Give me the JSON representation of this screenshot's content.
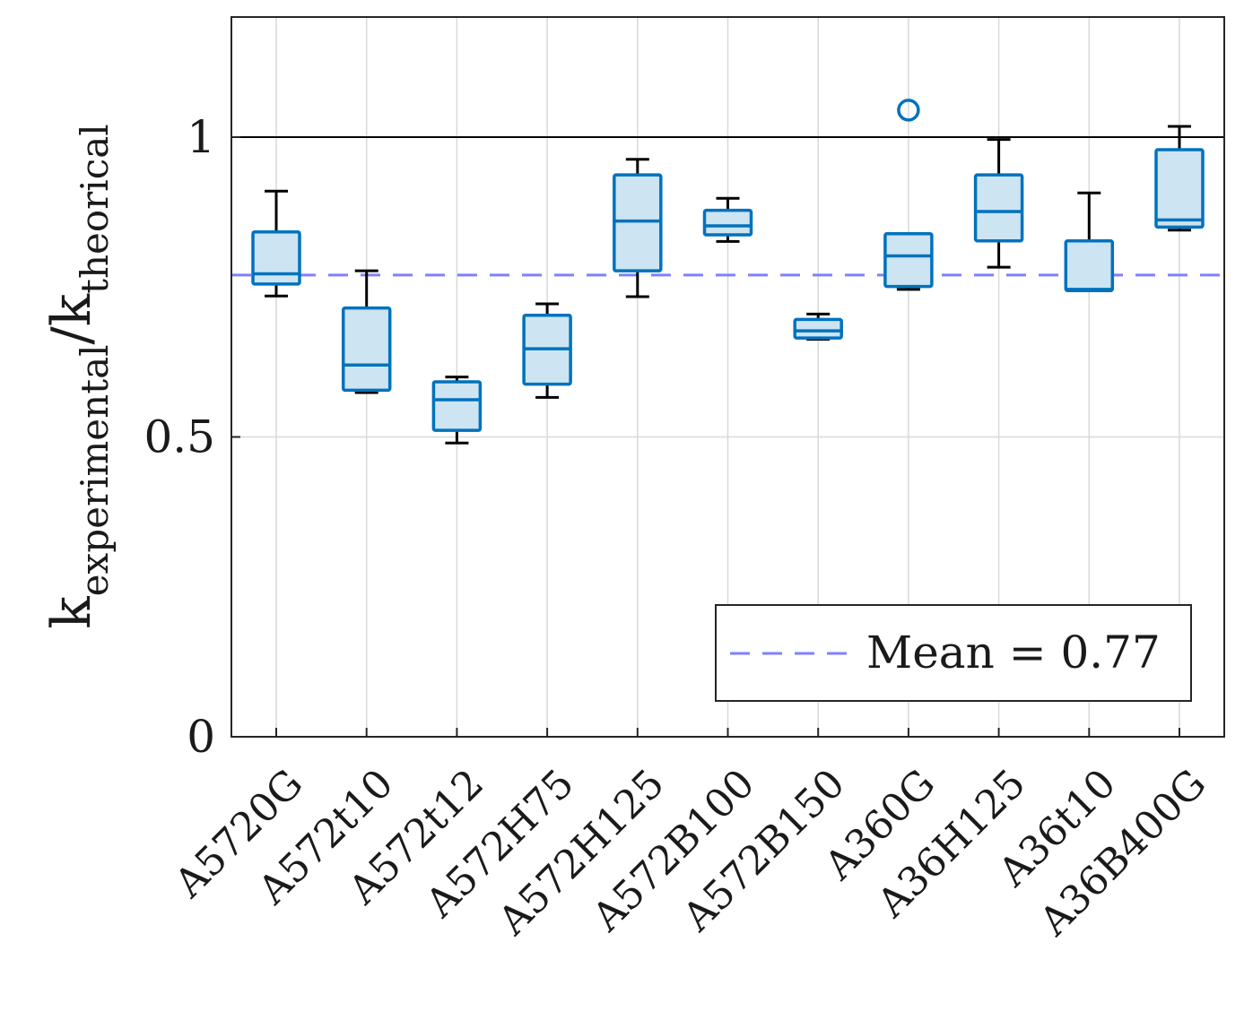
{
  "chart_data": {
    "type": "box",
    "title": "",
    "xlabel": "",
    "ylabel": {
      "main_a": "k",
      "sub_a": "experimental",
      "slash": "/",
      "main_b": "k",
      "sub_b": "theorical"
    },
    "ylim": [
      0,
      1.2
    ],
    "yticks": [
      {
        "value": 0,
        "label": "0"
      },
      {
        "value": 0.5,
        "label": "0.5"
      },
      {
        "value": 1,
        "label": "1"
      }
    ],
    "grid": true,
    "reference_line": {
      "value": 1,
      "color": "#000000"
    },
    "mean_line": {
      "value": 0.77,
      "label": "Mean = 0.77",
      "color": "#7f7fff"
    },
    "legend": {
      "position": "bottom-right"
    },
    "colors": {
      "box_edge": "#0072bd",
      "box_fill": "#cde4f2",
      "whisker": "#000000",
      "grid": "#d9d9d9",
      "axis": "#262626"
    },
    "categories": [
      "A5720G",
      "A572t10",
      "A572t12",
      "A572H75",
      "A572H125",
      "A572B100",
      "A572B150",
      "A360G",
      "A36H125",
      "A36t10",
      "A36B400G"
    ],
    "boxes": [
      {
        "category": "A5720G",
        "min": 0.735,
        "q1": 0.755,
        "median": 0.772,
        "q3": 0.842,
        "max": 0.91
      },
      {
        "category": "A572t10",
        "min": 0.574,
        "q1": 0.578,
        "median": 0.62,
        "q3": 0.715,
        "max": 0.777
      },
      {
        "category": "A572t12",
        "min": 0.49,
        "q1": 0.511,
        "median": 0.562,
        "q3": 0.592,
        "max": 0.6
      },
      {
        "category": "A572H75",
        "min": 0.566,
        "q1": 0.588,
        "median": 0.647,
        "q3": 0.703,
        "max": 0.722
      },
      {
        "category": "A572H125",
        "min": 0.734,
        "q1": 0.777,
        "median": 0.86,
        "q3": 0.937,
        "max": 0.963
      },
      {
        "category": "A572B100",
        "min": 0.826,
        "q1": 0.837,
        "median": 0.852,
        "q3": 0.878,
        "max": 0.898
      },
      {
        "category": "A572B150",
        "min": 0.663,
        "q1": 0.665,
        "median": 0.677,
        "q3": 0.696,
        "max": 0.705
      },
      {
        "category": "A360G",
        "min": 0.746,
        "q1": 0.751,
        "median": 0.802,
        "q3": 0.839,
        "max": 0.839,
        "outliers": [
          1.045
        ]
      },
      {
        "category": "A36H125",
        "min": 0.783,
        "q1": 0.827,
        "median": 0.876,
        "q3": 0.937,
        "max": 0.996
      },
      {
        "category": "A36t10",
        "min": 0.744,
        "q1": 0.744,
        "median": 0.746,
        "q3": 0.827,
        "max": 0.907
      },
      {
        "category": "A36B400G",
        "min": 0.845,
        "q1": 0.85,
        "median": 0.862,
        "q3": 0.979,
        "max": 1.018
      }
    ]
  }
}
